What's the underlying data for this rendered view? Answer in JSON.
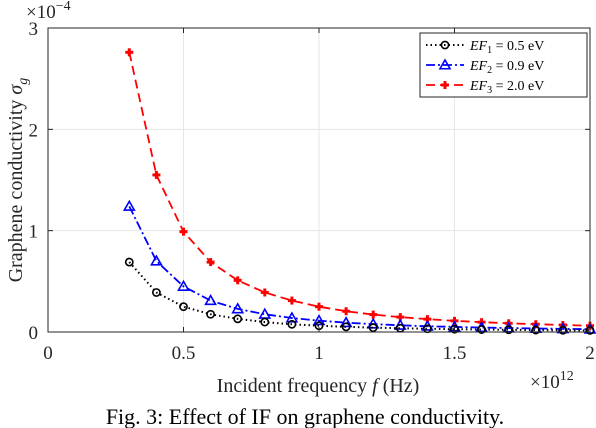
{
  "chart_data": {
    "type": "line",
    "title": "",
    "xlabel": "Incident frequency f (Hz)",
    "ylabel": "Graphene conductivity σg",
    "x_multiplier_label": "×10^12",
    "y_multiplier_label": "×10^-4",
    "xlim": [
      0,
      2
    ],
    "ylim": [
      0,
      3
    ],
    "xticks": [
      "0",
      "0.5",
      "1",
      "1.5",
      "2"
    ],
    "yticks": [
      "0",
      "1",
      "2",
      "3"
    ],
    "grid": true,
    "legend_position": "top-right",
    "x": [
      0.3,
      0.4,
      0.5,
      0.6,
      0.7,
      0.8,
      0.9,
      1.0,
      1.1,
      1.2,
      1.3,
      1.4,
      1.5,
      1.6,
      1.7,
      1.8,
      1.9,
      2.0
    ],
    "series": [
      {
        "name": "EF1 = 0.5 eV",
        "legend_main": "EF",
        "legend_sub": "1",
        "legend_value": " = 0.5 eV",
        "color": "#000000",
        "marker": "circle",
        "linestyle": "dotted",
        "values": [
          0.69,
          0.39,
          0.25,
          0.175,
          0.13,
          0.098,
          0.076,
          0.062,
          0.051,
          0.043,
          0.037,
          0.032,
          0.028,
          0.024,
          0.022,
          0.019,
          0.017,
          0.016
        ]
      },
      {
        "name": "EF2 = 0.9 eV",
        "legend_main": "EF",
        "legend_sub": "2",
        "legend_value": " = 0.9 eV",
        "color": "#0000ff",
        "marker": "triangle",
        "linestyle": "dashdot",
        "values": [
          1.24,
          0.7,
          0.45,
          0.31,
          0.228,
          0.175,
          0.138,
          0.112,
          0.092,
          0.078,
          0.066,
          0.057,
          0.05,
          0.044,
          0.039,
          0.035,
          0.031,
          0.028
        ]
      },
      {
        "name": "EF3 = 2.0 eV",
        "legend_main": "EF",
        "legend_sub": "3",
        "legend_value": " = 2.0 eV",
        "color": "#ff0000",
        "marker": "plus",
        "linestyle": "dashed",
        "values": [
          2.76,
          1.55,
          0.99,
          0.69,
          0.51,
          0.39,
          0.31,
          0.25,
          0.205,
          0.172,
          0.147,
          0.127,
          0.11,
          0.097,
          0.086,
          0.077,
          0.069,
          0.062
        ]
      }
    ]
  },
  "caption": "Fig. 3: Effect of IF on graphene conductivity."
}
